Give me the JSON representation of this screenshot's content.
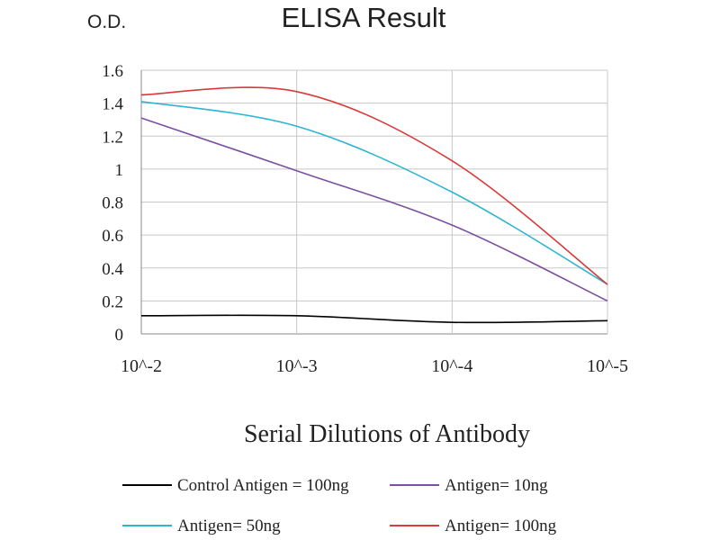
{
  "chart_data": {
    "type": "line",
    "title": "ELISA Result",
    "ylabel": "O.D.",
    "xlabel": "Serial Dilutions of Antibody",
    "ylim": [
      0,
      1.6
    ],
    "y_ticks": [
      "0",
      "0.2",
      "0.4",
      "0.6",
      "0.8",
      "1",
      "1.2",
      "1.4",
      "1.6"
    ],
    "categories": [
      "10^-2",
      "10^-3",
      "10^-4",
      "10^-5"
    ],
    "grid": true,
    "legend_position": "bottom",
    "series": [
      {
        "name": "Control Antigen = 100ng",
        "color": "#000000",
        "values": [
          0.11,
          0.11,
          0.07,
          0.08
        ]
      },
      {
        "name": "Antigen= 10ng",
        "color": "#7b4fa3",
        "values": [
          1.31,
          0.99,
          0.66,
          0.2
        ]
      },
      {
        "name": "Antigen= 50ng",
        "color": "#2fb5d3",
        "values": [
          1.41,
          1.26,
          0.86,
          0.3
        ]
      },
      {
        "name": "Antigen= 100ng",
        "color": "#d93a3a",
        "values": [
          1.45,
          1.47,
          1.05,
          0.3
        ]
      }
    ]
  }
}
